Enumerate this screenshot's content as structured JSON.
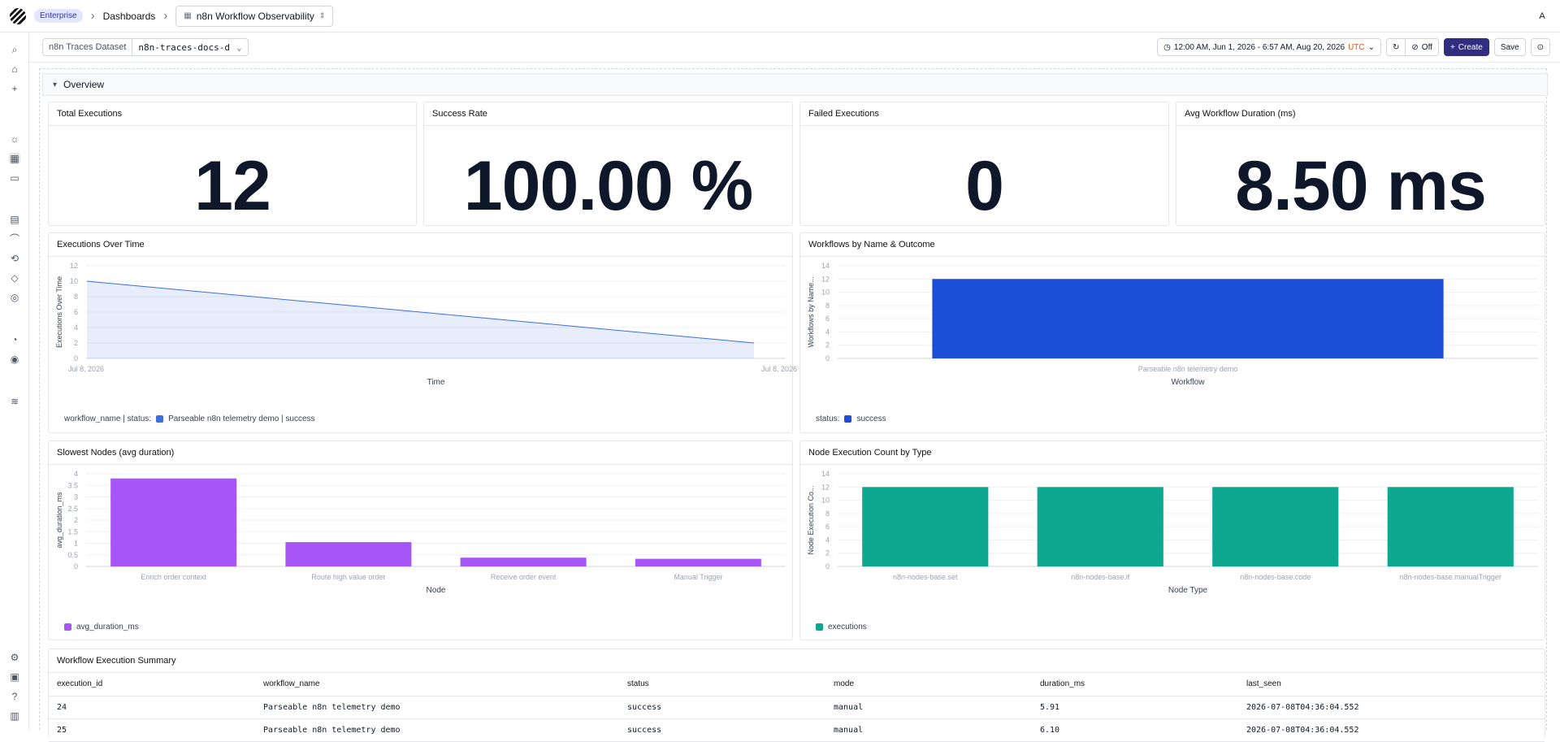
{
  "topbar": {
    "badge": "Enterprise",
    "breadcrumb_dashboards": "Dashboards",
    "dashboard_name": "n8n Workflow Observability",
    "avatar": "A"
  },
  "toolbar": {
    "dataset_label": "n8n Traces Dataset",
    "dataset_value": "n8n-traces-docs-d",
    "time_range": "12:00 AM, Jun 1, 2026 - 6:57 AM, Aug 20, 2026",
    "timezone": "UTC",
    "refresh_off": "Off",
    "create_label": "Create",
    "save_label": "Save"
  },
  "section": {
    "title": "Overview"
  },
  "stats": [
    {
      "title": "Total Executions",
      "value": "12"
    },
    {
      "title": "Success Rate",
      "value": "100.00 %"
    },
    {
      "title": "Failed Executions",
      "value": "0"
    },
    {
      "title": "Avg Workflow Duration (ms)",
      "value": "8.50 ms"
    }
  ],
  "chart_data": [
    {
      "id": "executions_over_time",
      "panel_title": "Executions Over Time",
      "type": "area",
      "xlabel": "Time",
      "ylabel": "Executions Over Time",
      "x_tick_labels": [
        "Jul 8, 2026",
        "Jul 8, 2026"
      ],
      "ylim": [
        0,
        12
      ],
      "y_ticks": [
        0,
        2,
        4,
        6,
        8,
        10,
        12
      ],
      "series": [
        {
          "name": "Parseable n8n telemetry demo | success",
          "values": [
            10,
            2
          ]
        }
      ],
      "legend_prefix": "workflow_name | status:",
      "color": "#3b6fe0",
      "grid": true
    },
    {
      "id": "workflows_by_name",
      "panel_title": "Workflows by Name & Outcome",
      "type": "bar",
      "xlabel": "Workflow",
      "ylabel": "Workflows by Name...",
      "categories": [
        "Parseable n8n telemetry demo"
      ],
      "ylim": [
        0,
        14
      ],
      "y_ticks": [
        0,
        2,
        4,
        6,
        8,
        10,
        12,
        14
      ],
      "series": [
        {
          "name": "success",
          "values": [
            12
          ]
        }
      ],
      "legend_prefix": "status:",
      "color": "#1d4ed8",
      "grid": true
    },
    {
      "id": "slowest_nodes",
      "panel_title": "Slowest Nodes (avg duration)",
      "type": "bar",
      "xlabel": "Node",
      "ylabel": "avg_duration_ms",
      "categories": [
        "Enrich order context",
        "Route high value order",
        "Receive order event",
        "Manual Trigger"
      ],
      "ylim": [
        0,
        4
      ],
      "y_ticks": [
        0,
        0.5,
        1,
        1.5,
        2,
        2.5,
        3,
        3.5,
        4
      ],
      "series": [
        {
          "name": "avg_duration_ms",
          "values": [
            3.8,
            1.05,
            0.38,
            0.33
          ]
        }
      ],
      "legend_prefix": "",
      "color": "#a855f7",
      "grid": true
    },
    {
      "id": "node_execution_count",
      "panel_title": "Node Execution Count by Type",
      "type": "bar",
      "xlabel": "Node Type",
      "ylabel": "Node Execution Co...",
      "categories": [
        "n8n-nodes-base.set",
        "n8n-nodes-base.if",
        "n8n-nodes-base.code",
        "n8n-nodes-base.manualTrigger"
      ],
      "ylim": [
        0,
        14
      ],
      "y_ticks": [
        0,
        2,
        4,
        6,
        8,
        10,
        12,
        14
      ],
      "series": [
        {
          "name": "executions",
          "values": [
            12,
            12,
            12,
            12
          ]
        }
      ],
      "legend_prefix": "",
      "color": "#0ea891",
      "grid": true
    }
  ],
  "table": {
    "title": "Workflow Execution Summary",
    "columns": [
      "execution_id",
      "workflow_name",
      "status",
      "mode",
      "duration_ms",
      "last_seen"
    ],
    "rows": [
      [
        "24",
        "Parseable n8n telemetry demo",
        "success",
        "manual",
        "5.91",
        "2026-07-08T04:36:04.552"
      ],
      [
        "25",
        "Parseable n8n telemetry demo",
        "success",
        "manual",
        "6.10",
        "2026-07-08T04:36:04.552"
      ]
    ]
  }
}
